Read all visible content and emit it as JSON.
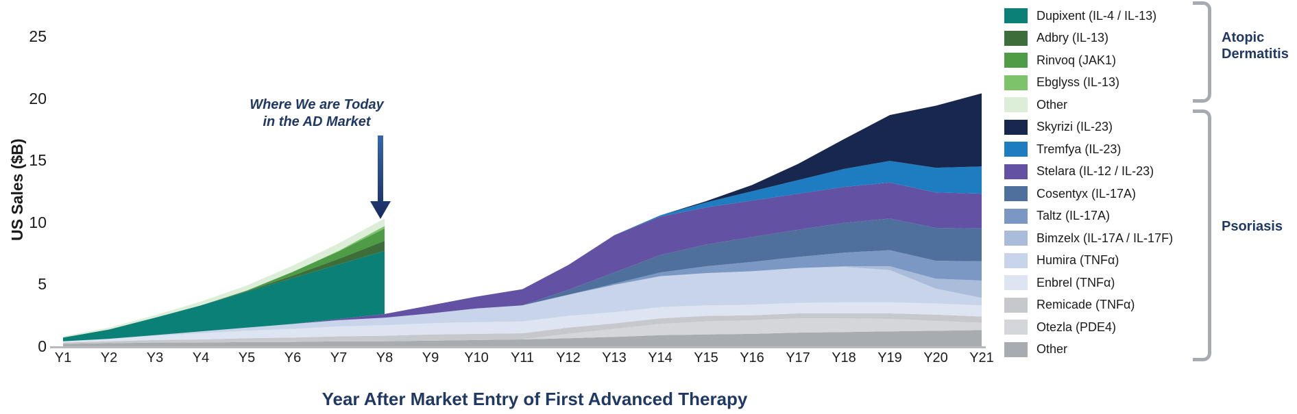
{
  "annotation": {
    "line1": "Where We are Today",
    "line2": "in the AD Market"
  },
  "axes": {
    "y_label": "US Sales ($B)",
    "x_label": "Year After Market Entry of First Advanced Therapy"
  },
  "legend": {
    "groups": [
      {
        "label": "Atopic Dermatitis"
      },
      {
        "label": "Psoriasis"
      }
    ]
  },
  "colors": {
    "navy_text": "#1f3864",
    "axis_line": "#b7b9bc",
    "bracket": "#a7aaae",
    "arrow_top": "#3567b1",
    "arrow_bottom": "#172b5e"
  },
  "chart_data": {
    "type": "area",
    "stacked": true,
    "ylabel": "US Sales ($B)",
    "xlabel": "Year After Market Entry of First Advanced Therapy",
    "yticks": [
      0,
      5,
      10,
      15,
      20,
      25
    ],
    "ylim": [
      0,
      27
    ],
    "grid": false,
    "legend_position": "right",
    "x_categories": [
      "Y1",
      "Y2",
      "Y3",
      "Y4",
      "Y5",
      "Y6",
      "Y7",
      "Y8",
      "Y9",
      "Y10",
      "Y11",
      "Y12",
      "Y13",
      "Y14",
      "Y15",
      "Y16",
      "Y17",
      "Y18",
      "Y19",
      "Y20",
      "Y21"
    ],
    "note": "pso_series are stacked bottom-to-top for years Y1-Y21; ad_series are stacked on top of the psoriasis total for years Y1-Y8 only (vertical cliff at Y8). Values in US $B.",
    "pso_series": [
      {
        "id": "other-psoriasis",
        "label": "Other",
        "color": "#a8abb0",
        "values": [
          0.2,
          0.25,
          0.3,
          0.3,
          0.35,
          0.35,
          0.4,
          0.4,
          0.45,
          0.5,
          0.55,
          0.65,
          0.75,
          0.9,
          0.95,
          1.0,
          1.1,
          1.15,
          1.2,
          1.25,
          1.3
        ]
      },
      {
        "id": "otezla",
        "label": "Otezla (PDE4)",
        "color": "#d4d6d9",
        "values": [
          0,
          0,
          0,
          0,
          0,
          0,
          0,
          0,
          0,
          0,
          0,
          0.35,
          0.65,
          0.9,
          1.05,
          1.1,
          1.15,
          1.1,
          1.0,
          0.8,
          0.6
        ]
      },
      {
        "id": "remicade",
        "label": "Remicade (TNFα)",
        "color": "#c6c8cb",
        "values": [
          0.1,
          0.15,
          0.2,
          0.25,
          0.3,
          0.35,
          0.4,
          0.45,
          0.5,
          0.5,
          0.5,
          0.5,
          0.45,
          0.45,
          0.45,
          0.4,
          0.4,
          0.4,
          0.45,
          0.5,
          0.5
        ]
      },
      {
        "id": "enbrel",
        "label": "Enbrel (TNFα)",
        "color": "#dde4f2",
        "values": [
          0.1,
          0.2,
          0.35,
          0.5,
          0.6,
          0.7,
          0.8,
          0.85,
          0.9,
          0.95,
          0.95,
          0.95,
          0.9,
          0.9,
          0.85,
          0.85,
          0.85,
          0.9,
          0.9,
          0.9,
          0.9
        ]
      },
      {
        "id": "humira",
        "label": "Humira (TNFα)",
        "color": "#c8d4e9",
        "values": [
          0,
          0,
          0.05,
          0.15,
          0.25,
          0.4,
          0.5,
          0.6,
          0.8,
          1.1,
          1.3,
          1.7,
          2.2,
          2.5,
          2.6,
          2.7,
          2.8,
          2.85,
          2.6,
          1.2,
          0.6
        ]
      },
      {
        "id": "bimzelx",
        "label": "Bimzelx (IL-17A / IL-17F)",
        "color": "#a9bcda",
        "values": [
          0,
          0,
          0,
          0,
          0,
          0,
          0,
          0,
          0,
          0,
          0,
          0,
          0,
          0,
          0,
          0,
          0,
          0.05,
          0.3,
          0.8,
          1.4
        ]
      },
      {
        "id": "taltz",
        "label": "Taltz (IL-17A)",
        "color": "#7b97c3",
        "values": [
          0,
          0,
          0,
          0,
          0,
          0,
          0,
          0,
          0,
          0,
          0,
          0,
          0.1,
          0.3,
          0.55,
          0.75,
          0.9,
          1.1,
          1.3,
          1.45,
          1.55
        ]
      },
      {
        "id": "cosentyx",
        "label": "Cosentyx (IL-17A)",
        "color": "#4f709d",
        "values": [
          0,
          0,
          0,
          0,
          0,
          0,
          0,
          0,
          0,
          0,
          0,
          0.4,
          0.9,
          1.4,
          1.75,
          2.0,
          2.2,
          2.4,
          2.55,
          2.65,
          2.65
        ]
      },
      {
        "id": "stelara",
        "label": "Stelara (IL-12 / IL-23)",
        "color": "#6351a4",
        "values": [
          0,
          0,
          0,
          0,
          0,
          0,
          0.1,
          0.3,
          0.65,
          0.95,
          1.3,
          2.0,
          3.0,
          3.1,
          3.0,
          2.95,
          2.9,
          2.9,
          2.9,
          2.85,
          2.8
        ]
      },
      {
        "id": "tremfya",
        "label": "Tremfya (IL-23)",
        "color": "#1d7dc0",
        "values": [
          0,
          0,
          0,
          0,
          0,
          0,
          0,
          0,
          0,
          0,
          0,
          0,
          0,
          0.1,
          0.4,
          0.75,
          1.1,
          1.45,
          1.75,
          2.0,
          2.2
        ]
      },
      {
        "id": "skyrizi",
        "label": "Skyrizi (IL-23)",
        "color": "#17274d",
        "values": [
          0,
          0,
          0,
          0,
          0,
          0,
          0,
          0,
          0,
          0,
          0,
          0,
          0,
          0,
          0.1,
          0.5,
          1.3,
          2.4,
          3.7,
          5.0,
          5.9
        ]
      }
    ],
    "ad_series": [
      {
        "id": "dupixent",
        "label": "Dupixent (IL-4 / IL-13)",
        "color": "#0b8076",
        "values": [
          0.3,
          0.75,
          1.4,
          2.1,
          2.9,
          3.7,
          4.4,
          5.1
        ]
      },
      {
        "id": "adbry",
        "label": "Adbry (IL-13)",
        "color": "#3d6d38",
        "values": [
          0,
          0,
          0,
          0,
          0.05,
          0.2,
          0.45,
          0.8
        ]
      },
      {
        "id": "rinvoq",
        "label": "Rinvoq (JAK1)",
        "color": "#4f9c47",
        "values": [
          0,
          0,
          0,
          0,
          0.05,
          0.3,
          0.6,
          1.0
        ]
      },
      {
        "id": "ebglyss",
        "label": "Ebglyss (IL-13)",
        "color": "#7cc36a",
        "values": [
          0,
          0,
          0,
          0,
          0,
          0,
          0.05,
          0.2
        ]
      },
      {
        "id": "other-ad",
        "label": "Other",
        "color": "#dcedd8",
        "values": [
          0.1,
          0.15,
          0.2,
          0.3,
          0.4,
          0.5,
          0.6,
          0.6
        ]
      }
    ]
  }
}
